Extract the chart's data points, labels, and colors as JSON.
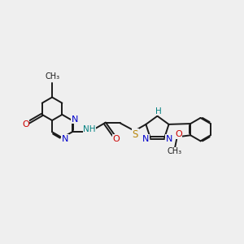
{
  "background_color": "#efefef",
  "bond_color": "#1a1a1a",
  "bond_lw": 1.4,
  "figsize": [
    3.0,
    3.0
  ],
  "dpi": 100,
  "xlim": [
    0.2,
    8.8
  ],
  "ylim": [
    1.8,
    6.2
  ]
}
